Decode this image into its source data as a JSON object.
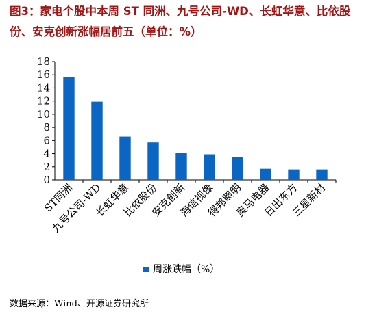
{
  "title": "图3：家电个股中本周 ST 同洲、九号公司-WD、长虹华意、比依股份、安克创新涨幅居前五（单位：%）",
  "source": "数据来源：Wind、开源证券研究所",
  "chart_data": {
    "type": "bar",
    "categories": [
      "ST同洲",
      "九号公司-WD",
      "长虹华意",
      "比依股份",
      "安克创新",
      "海信视像",
      "得邦照明",
      "奥马电器",
      "日出东方",
      "三星新材"
    ],
    "series": [
      {
        "name": "周涨跌幅（%）",
        "values": [
          15.7,
          11.9,
          6.6,
          5.7,
          4.1,
          3.9,
          3.5,
          1.7,
          1.6,
          1.6
        ]
      }
    ],
    "ylim": [
      0,
      18
    ],
    "yticks": [
      0,
      2,
      4,
      6,
      8,
      10,
      12,
      14,
      16,
      18
    ],
    "legend_position": "bottom",
    "colors": {
      "bar": "#0a66c2",
      "title": "#a31515"
    }
  }
}
